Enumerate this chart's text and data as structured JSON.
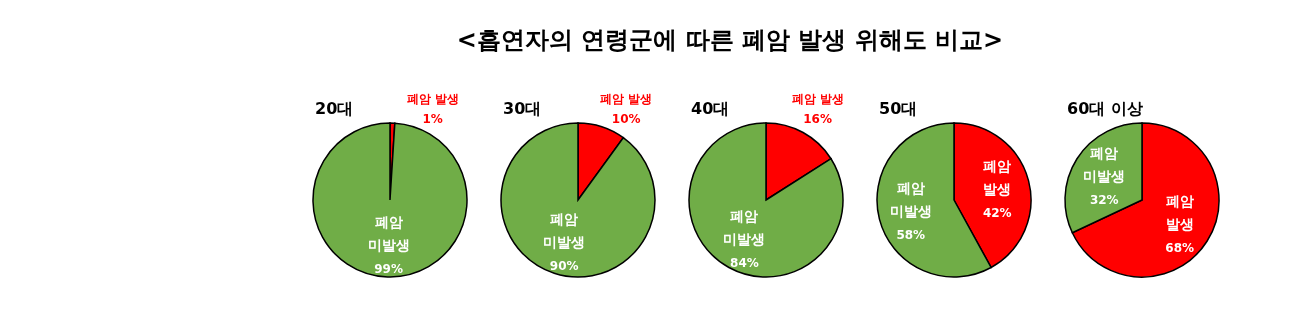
{
  "chart_data": [
    {
      "type": "other",
      "title": "<흡연자의 연령군에 따른 폐암 발생 위해도 비교>"
    },
    {
      "type": "pie",
      "title": "20대",
      "categories": [
        "폐암 발생",
        "폐암 미발생"
      ],
      "values": [
        1,
        99
      ],
      "colors": [
        "#ff0000",
        "#70ad47"
      ],
      "value_labels": [
        "1%",
        "99%"
      ]
    },
    {
      "type": "pie",
      "title": "30대",
      "categories": [
        "폐암 발생",
        "폐암 미발생"
      ],
      "values": [
        10,
        90
      ],
      "colors": [
        "#ff0000",
        "#70ad47"
      ],
      "value_labels": [
        "10%",
        "90%"
      ]
    },
    {
      "type": "pie",
      "title": "40대",
      "categories": [
        "폐암 발생",
        "폐암 미발생"
      ],
      "values": [
        16,
        84
      ],
      "colors": [
        "#ff0000",
        "#70ad47"
      ],
      "value_labels": [
        "16%",
        "84%"
      ]
    },
    {
      "type": "pie",
      "title": "50대",
      "categories": [
        "폐암 발생",
        "폐암 미발생"
      ],
      "values": [
        42,
        58
      ],
      "colors": [
        "#ff0000",
        "#70ad47"
      ],
      "value_labels": [
        "42%",
        "58%"
      ]
    },
    {
      "type": "pie",
      "title": "60대 이상",
      "categories": [
        "폐암 발생",
        "폐암 미발생"
      ],
      "values": [
        68,
        32
      ],
      "colors": [
        "#ff0000",
        "#70ad47"
      ],
      "value_labels": [
        "68%",
        "32%"
      ]
    }
  ]
}
